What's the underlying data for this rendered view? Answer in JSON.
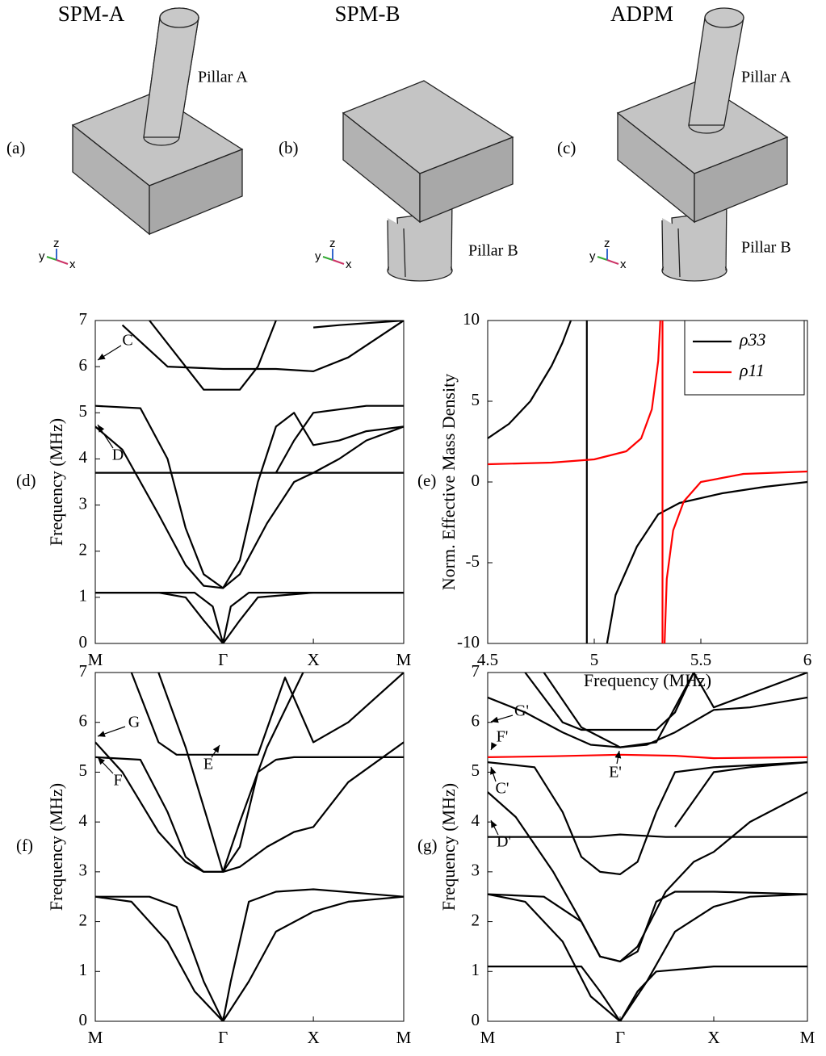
{
  "panels": [
    {
      "label": "(a)",
      "title": "SPM-A",
      "notes": [
        "Pillar A"
      ]
    },
    {
      "label": "(b)",
      "title": "SPM-B",
      "notes": [
        "Pillar B"
      ]
    },
    {
      "label": "(c)",
      "title": "ADPM",
      "notes": [
        "Pillar A",
        "Pillar B"
      ]
    }
  ],
  "triad_axes": [
    "y",
    "z",
    "x"
  ],
  "chart_data": [
    {
      "type": "line",
      "panel_label": "(d)",
      "ylabel": "Frequency (MHz)",
      "xlim": [
        0,
        3.414
      ],
      "ylim": [
        0,
        7
      ],
      "yticks": [
        0,
        1,
        2,
        3,
        4,
        5,
        6,
        7
      ],
      "xticks": [
        {
          "value": 0,
          "label": "M"
        },
        {
          "value": 1.414,
          "label": "Γ"
        },
        {
          "value": 2.414,
          "label": "X"
        },
        {
          "value": 3.414,
          "label": "M"
        }
      ],
      "annotations": [
        "C",
        "D"
      ],
      "series": [
        {
          "color": "#000000",
          "x": [
            0,
            0.7,
            1.0,
            1.2,
            1.414,
            1.6,
            1.8,
            2.414,
            3.414
          ],
          "values": [
            1.1,
            1.1,
            1.0,
            0.5,
            0,
            0.5,
            1.0,
            1.1,
            1.1
          ]
        },
        {
          "color": "#000000",
          "x": [
            0,
            1.1,
            1.3,
            1.414,
            1.5,
            1.7,
            2.414,
            3.414
          ],
          "values": [
            1.1,
            1.1,
            0.8,
            0,
            0.8,
            1.1,
            1.1,
            1.1
          ]
        },
        {
          "color": "#000000",
          "x": [
            0,
            0.3,
            0.7,
            1.0,
            1.2,
            1.414,
            1.6,
            1.9,
            2.2,
            2.414,
            2.7,
            3.0,
            3.414
          ],
          "values": [
            4.7,
            4.2,
            2.8,
            1.7,
            1.25,
            1.2,
            1.5,
            2.6,
            3.5,
            3.7,
            4.0,
            4.4,
            4.7
          ]
        },
        {
          "color": "#000000",
          "x": [
            0,
            1.414,
            2.414,
            3.414
          ],
          "values": [
            3.7,
            3.7,
            3.7,
            3.7
          ]
        },
        {
          "color": "#000000",
          "x": [
            0,
            0.5,
            0.8,
            1.0,
            1.2,
            1.414,
            1.6,
            1.8,
            2.0,
            2.2,
            2.414,
            2.7,
            3.0,
            3.414
          ],
          "values": [
            5.15,
            5.1,
            4.0,
            2.5,
            1.5,
            1.2,
            1.8,
            3.5,
            4.7,
            5.0,
            4.3,
            4.4,
            4.6,
            4.7
          ]
        },
        {
          "color": "#000000",
          "x": [
            2.0,
            2.2,
            2.414,
            3.0,
            3.414
          ],
          "values": [
            3.7,
            4.4,
            5.0,
            5.15,
            5.15
          ]
        },
        {
          "color": "#000000",
          "x": [
            0.3,
            0.8,
            1.414,
            2.0,
            2.414,
            2.8,
            3.414
          ],
          "values": [
            6.9,
            6.0,
            5.95,
            5.95,
            5.9,
            6.2,
            7
          ]
        },
        {
          "color": "#000000",
          "x": [
            0.6,
            1.0,
            1.2,
            1.414,
            1.6,
            1.8,
            2.0
          ],
          "values": [
            7,
            6,
            5.5,
            5.5,
            5.5,
            6,
            7
          ]
        },
        {
          "color": "#000000",
          "x": [
            2.414,
            2.7,
            3.414
          ],
          "values": [
            6.85,
            6.9,
            7
          ]
        }
      ]
    },
    {
      "type": "line",
      "panel_label": "(e)",
      "ylabel": "Norm. Effective Mass Density",
      "xlabel": "Frequency (MHz)",
      "xlim": [
        4.5,
        6
      ],
      "ylim": [
        -10,
        10
      ],
      "xticks": [
        4.5,
        5,
        5.5,
        6
      ],
      "yticks": [
        -10,
        -5,
        0,
        5,
        10
      ],
      "legend": "upper right",
      "series": [
        {
          "name": "ρ33",
          "color": "#000000",
          "x": [
            4.5,
            4.6,
            4.7,
            4.8,
            4.85,
            4.89,
            4.93,
            4.965,
            4.965,
            5.0,
            5.06,
            5.1,
            5.2,
            5.3,
            5.4,
            5.6,
            5.8,
            6.0
          ],
          "values": [
            2.7,
            3.6,
            5.0,
            7.2,
            8.6,
            10,
            null,
            10,
            -10,
            null,
            -10,
            -7,
            -4,
            -2,
            -1.3,
            -0.7,
            -0.3,
            0
          ]
        },
        {
          "name": "ρ11",
          "color": "#ff0000",
          "x": [
            4.5,
            4.8,
            5.0,
            5.15,
            5.22,
            5.27,
            5.3,
            5.31,
            5.315,
            5.32,
            5.32,
            5.325,
            5.33,
            5.34,
            5.37,
            5.42,
            5.5,
            5.7,
            6.0
          ],
          "values": [
            1.1,
            1.2,
            1.4,
            1.9,
            2.7,
            4.5,
            7.5,
            10,
            null,
            10,
            -10,
            null,
            -10,
            -6,
            -3,
            -1.2,
            0,
            0.5,
            0.65
          ]
        }
      ]
    },
    {
      "type": "line",
      "panel_label": "(f)",
      "ylabel": "Frequency (MHz)",
      "xlim": [
        0,
        3.414
      ],
      "ylim": [
        0,
        7
      ],
      "yticks": [
        0,
        1,
        2,
        3,
        4,
        5,
        6,
        7
      ],
      "xticks": [
        {
          "value": 0,
          "label": "M"
        },
        {
          "value": 1.414,
          "label": "Γ"
        },
        {
          "value": 2.414,
          "label": "X"
        },
        {
          "value": 3.414,
          "label": "M"
        }
      ],
      "annotations": [
        "G",
        "F",
        "E"
      ],
      "series": [
        {
          "color": "#000000",
          "x": [
            0,
            0.4,
            0.8,
            1.1,
            1.414,
            1.7,
            2.0,
            2.414,
            2.8,
            3.414
          ],
          "values": [
            2.5,
            2.4,
            1.6,
            0.6,
            0,
            0.8,
            1.8,
            2.2,
            2.4,
            2.5
          ]
        },
        {
          "color": "#000000",
          "x": [
            0,
            0.6,
            0.9,
            1.2,
            1.414,
            1.5,
            1.7,
            2.0,
            2.414,
            3.414
          ],
          "values": [
            2.5,
            2.5,
            2.3,
            0.8,
            0,
            0.8,
            2.4,
            2.6,
            2.65,
            2.5
          ]
        },
        {
          "color": "#000000",
          "x": [
            0,
            0.3,
            0.7,
            1.0,
            1.2,
            1.414,
            1.6,
            1.9,
            2.2,
            2.414,
            2.8,
            3.414
          ],
          "values": [
            5.6,
            5.0,
            3.8,
            3.2,
            3.0,
            3.0,
            3.1,
            3.5,
            3.8,
            3.9,
            4.8,
            5.6
          ]
        },
        {
          "color": "#000000",
          "x": [
            0,
            0.5,
            0.8,
            1.0,
            1.2,
            1.414,
            1.6,
            1.8,
            2.0,
            2.2,
            2.414,
            3.414
          ],
          "values": [
            5.3,
            5.25,
            4.2,
            3.3,
            3.0,
            3.0,
            3.5,
            5.0,
            5.25,
            5.3,
            5.3,
            5.3
          ]
        },
        {
          "color": "#000000",
          "x": [
            0.4,
            0.7,
            0.9,
            1.2,
            1.414,
            1.8,
            2.1,
            2.414,
            2.8,
            3.414
          ],
          "values": [
            7,
            5.6,
            5.35,
            5.35,
            5.35,
            5.35,
            6.9,
            5.6,
            6.0,
            7
          ]
        },
        {
          "color": "#000000",
          "x": [
            0.7,
            1.0,
            1.25,
            1.414,
            1.6,
            1.9,
            2.3
          ],
          "values": [
            7,
            5.5,
            4.0,
            3.0,
            4.0,
            5.5,
            7
          ]
        }
      ]
    },
    {
      "type": "line",
      "panel_label": "(g)",
      "ylabel": "Frequency (MHz)",
      "xlim": [
        0,
        3.414
      ],
      "ylim": [
        0,
        7
      ],
      "yticks": [
        0,
        1,
        2,
        3,
        4,
        5,
        6,
        7
      ],
      "xticks": [
        {
          "value": 0,
          "label": "M"
        },
        {
          "value": 1.414,
          "label": "Γ"
        },
        {
          "value": 2.414,
          "label": "X"
        },
        {
          "value": 3.414,
          "label": "M"
        }
      ],
      "annotations": [
        "G'",
        "F'",
        "C'",
        "E'",
        "D'"
      ],
      "series": [
        {
          "color": "#000000",
          "x": [
            0,
            1.0,
            1.2,
            1.414,
            1.6,
            1.8,
            2.414,
            3.414
          ],
          "values": [
            1.1,
            1.1,
            0.6,
            0,
            0.6,
            1.0,
            1.1,
            1.1
          ]
        },
        {
          "color": "#000000",
          "x": [
            0,
            0.4,
            0.8,
            1.1,
            1.414,
            1.7,
            2.0,
            2.414,
            2.8,
            3.414
          ],
          "values": [
            2.55,
            2.4,
            1.6,
            0.5,
            0,
            0.8,
            1.8,
            2.3,
            2.5,
            2.55
          ]
        },
        {
          "color": "#000000",
          "x": [
            0,
            0.6,
            1.0,
            1.2,
            1.414,
            1.6,
            1.8,
            2.0,
            2.414,
            3.414
          ],
          "values": [
            2.55,
            2.5,
            2.0,
            1.3,
            1.2,
            1.4,
            2.4,
            2.6,
            2.6,
            2.55
          ]
        },
        {
          "color": "#000000",
          "x": [
            0,
            0.3,
            0.7,
            1.0,
            1.2,
            1.414,
            1.6,
            1.9,
            2.2,
            2.414,
            2.8,
            3.414
          ],
          "values": [
            4.6,
            4.1,
            3.0,
            2.0,
            1.3,
            1.2,
            1.5,
            2.6,
            3.2,
            3.4,
            4.0,
            4.6
          ]
        },
        {
          "color": "#000000",
          "x": [
            0,
            1.1,
            1.414,
            1.9,
            3.414
          ],
          "values": [
            3.7,
            3.7,
            3.75,
            3.7,
            3.7
          ]
        },
        {
          "color": "#000000",
          "x": [
            0,
            0.5,
            0.8,
            1.0,
            1.2,
            1.414,
            1.6,
            1.8,
            2.0,
            2.414,
            3.414
          ],
          "values": [
            5.2,
            5.1,
            4.2,
            3.3,
            3.0,
            2.95,
            3.2,
            4.2,
            5.0,
            5.1,
            5.2
          ]
        },
        {
          "color": "#000000",
          "x": [
            2.0,
            2.414,
            2.8,
            3.414
          ],
          "values": [
            3.9,
            5.0,
            5.1,
            5.2
          ]
        },
        {
          "color": "#000000",
          "x": [
            0,
            0.4,
            0.8,
            1.1,
            1.414,
            1.7,
            2.0,
            2.414,
            2.8,
            3.414
          ],
          "values": [
            6.5,
            6.2,
            5.8,
            5.55,
            5.5,
            5.55,
            5.8,
            6.25,
            6.3,
            6.5
          ]
        },
        {
          "color": "#000000",
          "x": [
            0.4,
            0.8,
            1.0,
            1.414,
            1.8,
            2.0,
            2.2
          ],
          "values": [
            7,
            6.0,
            5.85,
            5.85,
            5.85,
            6.2,
            7
          ]
        },
        {
          "color": "#000000",
          "x": [
            0.6,
            1.0,
            1.414,
            1.8,
            2.2,
            2.414,
            3.414
          ],
          "values": [
            7,
            5.9,
            5.5,
            5.6,
            7,
            6.3,
            7
          ]
        },
        {
          "color": "#ff0000",
          "x": [
            0,
            0.7,
            1.414,
            2.0,
            2.414,
            3.414
          ],
          "values": [
            5.3,
            5.32,
            5.35,
            5.33,
            5.28,
            5.3
          ]
        }
      ]
    }
  ]
}
